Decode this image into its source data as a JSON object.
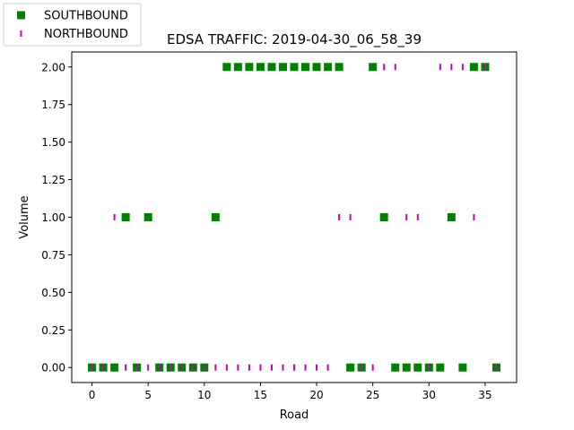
{
  "chart_data": {
    "type": "scatter",
    "title": "EDSA TRAFFIC: 2019-04-30_06_58_39",
    "xlabel": "Road",
    "ylabel": "Volume",
    "xlim": [
      -1.8,
      37.8
    ],
    "ylim": [
      -0.1,
      2.1
    ],
    "xticks": [
      0,
      5,
      10,
      15,
      20,
      25,
      30,
      35
    ],
    "yticks": [
      0.0,
      0.25,
      0.5,
      0.75,
      1.0,
      1.25,
      1.5,
      1.75,
      2.0
    ],
    "ytick_labels": [
      "0.00",
      "0.25",
      "0.50",
      "0.75",
      "1.00",
      "1.25",
      "1.50",
      "1.75",
      "2.00"
    ],
    "legend_position": "top-left",
    "series": [
      {
        "name": "SOUTHBOUND",
        "marker": "square",
        "color": "#008000",
        "x": [
          0,
          1,
          2,
          3,
          4,
          5,
          6,
          7,
          8,
          9,
          10,
          11,
          12,
          13,
          14,
          15,
          16,
          17,
          18,
          19,
          20,
          21,
          22,
          23,
          24,
          25,
          26,
          27,
          28,
          29,
          30,
          31,
          32,
          33,
          34,
          35,
          36
        ],
        "y": [
          0,
          0,
          0,
          1,
          0,
          1,
          0,
          0,
          0,
          0,
          0,
          1,
          2,
          2,
          2,
          2,
          2,
          2,
          2,
          2,
          2,
          2,
          2,
          0,
          0,
          2,
          1,
          0,
          0,
          0,
          0,
          0,
          1,
          0,
          2,
          2,
          0
        ]
      },
      {
        "name": "NORTHBOUND",
        "marker": "vline",
        "color": "#bf00bf",
        "x": [
          0,
          1,
          2,
          3,
          4,
          5,
          6,
          7,
          8,
          9,
          10,
          11,
          12,
          13,
          14,
          15,
          16,
          17,
          18,
          19,
          20,
          21,
          22,
          23,
          24,
          25,
          26,
          27,
          28,
          29,
          30,
          31,
          32,
          33,
          34,
          35,
          36
        ],
        "y": [
          0,
          0,
          1,
          0,
          0,
          0,
          0,
          0,
          0,
          0,
          0,
          0,
          0,
          0,
          0,
          0,
          0,
          0,
          0,
          0,
          0,
          0,
          1,
          1,
          0,
          0,
          2,
          2,
          1,
          1,
          0,
          2,
          2,
          2,
          1,
          2,
          0
        ]
      }
    ]
  }
}
